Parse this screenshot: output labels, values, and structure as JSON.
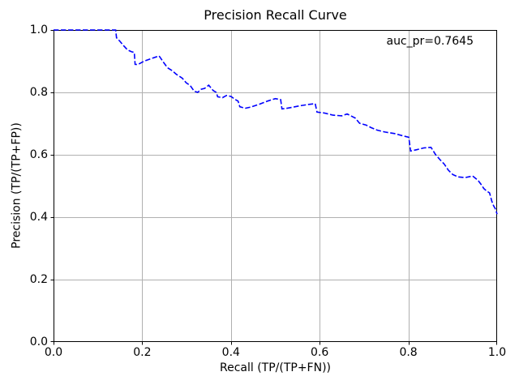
{
  "figure": {
    "background": "#ffffff",
    "text_color": "#000000"
  },
  "chart_data": {
    "type": "line",
    "title": "Precision Recall Curve",
    "xlabel": "Recall (TP/(TP+FN))",
    "ylabel": "Precision (TP/(TP+FP))",
    "xlim": [
      0.0,
      1.0
    ],
    "ylim": [
      0.0,
      1.0
    ],
    "xticks": [
      0.0,
      0.2,
      0.4,
      0.6,
      0.8,
      1.0
    ],
    "yticks": [
      0.0,
      0.2,
      0.4,
      0.6,
      0.8,
      1.0
    ],
    "xtick_labels": [
      "0.0",
      "0.2",
      "0.4",
      "0.6",
      "0.8",
      "1.0"
    ],
    "ytick_labels": [
      "0.0",
      "0.2",
      "0.4",
      "0.6",
      "0.8",
      "1.0"
    ],
    "grid": true,
    "grid_color": "#b0b0b0",
    "spine_color": "#000000",
    "legend": "none",
    "annotation": {
      "text": "auc_pr=0.7645"
    },
    "series": [
      {
        "name": "precision-recall",
        "color": "#0000ff",
        "line_style": "dashed",
        "points": [
          [
            0.0,
            1.0
          ],
          [
            0.14,
            1.0
          ],
          [
            0.142,
            0.975
          ],
          [
            0.149,
            0.965
          ],
          [
            0.158,
            0.95
          ],
          [
            0.167,
            0.936
          ],
          [
            0.176,
            0.93
          ],
          [
            0.182,
            0.928
          ],
          [
            0.184,
            0.89
          ],
          [
            0.19,
            0.889
          ],
          [
            0.204,
            0.9
          ],
          [
            0.222,
            0.909
          ],
          [
            0.238,
            0.917
          ],
          [
            0.248,
            0.896
          ],
          [
            0.257,
            0.879
          ],
          [
            0.268,
            0.869
          ],
          [
            0.277,
            0.858
          ],
          [
            0.29,
            0.846
          ],
          [
            0.299,
            0.831
          ],
          [
            0.308,
            0.822
          ],
          [
            0.317,
            0.804
          ],
          [
            0.325,
            0.8
          ],
          [
            0.333,
            0.81
          ],
          [
            0.341,
            0.813
          ],
          [
            0.35,
            0.823
          ],
          [
            0.36,
            0.806
          ],
          [
            0.367,
            0.8
          ],
          [
            0.37,
            0.786
          ],
          [
            0.381,
            0.783
          ],
          [
            0.39,
            0.79
          ],
          [
            0.4,
            0.787
          ],
          [
            0.409,
            0.778
          ],
          [
            0.416,
            0.772
          ],
          [
            0.42,
            0.754
          ],
          [
            0.432,
            0.749
          ],
          [
            0.445,
            0.753
          ],
          [
            0.464,
            0.762
          ],
          [
            0.482,
            0.772
          ],
          [
            0.5,
            0.78
          ],
          [
            0.512,
            0.777
          ],
          [
            0.515,
            0.747
          ],
          [
            0.522,
            0.748
          ],
          [
            0.537,
            0.752
          ],
          [
            0.555,
            0.757
          ],
          [
            0.573,
            0.761
          ],
          [
            0.59,
            0.764
          ],
          [
            0.594,
            0.737
          ],
          [
            0.61,
            0.734
          ],
          [
            0.63,
            0.727
          ],
          [
            0.65,
            0.725
          ],
          [
            0.662,
            0.731
          ],
          [
            0.68,
            0.718
          ],
          [
            0.69,
            0.701
          ],
          [
            0.705,
            0.695
          ],
          [
            0.716,
            0.687
          ],
          [
            0.73,
            0.679
          ],
          [
            0.747,
            0.673
          ],
          [
            0.769,
            0.668
          ],
          [
            0.787,
            0.661
          ],
          [
            0.801,
            0.656
          ],
          [
            0.805,
            0.612
          ],
          [
            0.818,
            0.616
          ],
          [
            0.835,
            0.622
          ],
          [
            0.851,
            0.624
          ],
          [
            0.861,
            0.601
          ],
          [
            0.872,
            0.583
          ],
          [
            0.881,
            0.57
          ],
          [
            0.89,
            0.551
          ],
          [
            0.9,
            0.537
          ],
          [
            0.912,
            0.529
          ],
          [
            0.928,
            0.527
          ],
          [
            0.945,
            0.532
          ],
          [
            0.957,
            0.518
          ],
          [
            0.964,
            0.505
          ],
          [
            0.97,
            0.492
          ],
          [
            0.977,
            0.483
          ],
          [
            0.983,
            0.478
          ],
          [
            0.988,
            0.452
          ],
          [
            0.992,
            0.437
          ],
          [
            0.996,
            0.427
          ],
          [
            1.0,
            0.41
          ]
        ]
      }
    ]
  }
}
